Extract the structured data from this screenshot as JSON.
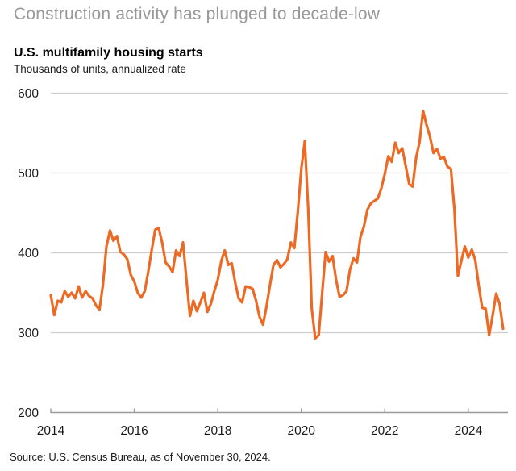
{
  "header": {
    "title": "Construction activity has plunged to decade-low"
  },
  "footer": {
    "source": "Source: U.S. Census Bureau, as of November 30, 2024."
  },
  "colors": {
    "line": "#ed6a24",
    "gridline": "#cdcdcd",
    "axis": "#9b9b9b",
    "title_gray": "#97989a"
  },
  "chart_data": {
    "type": "line",
    "title": "U.S. multifamily housing starts",
    "subtitle": "Thousands of units, annualized rate",
    "series_name": "Multifamily housing starts (thousands of units, annualized)",
    "frequency": "monthly",
    "x_start": {
      "year": 2014,
      "month": 1
    },
    "x_end": {
      "year": 2024,
      "month": 11
    },
    "ylim": [
      200,
      600
    ],
    "y_ticks": [
      200,
      300,
      400,
      500,
      600
    ],
    "x_ticks": [
      2014,
      2016,
      2018,
      2020,
      2022,
      2024
    ],
    "grid": "horizontal-only",
    "legend": "none",
    "values": [
      347,
      322,
      340,
      338,
      352,
      345,
      350,
      343,
      358,
      344,
      352,
      346,
      343,
      334,
      329,
      360,
      408,
      428,
      415,
      421,
      401,
      398,
      392,
      372,
      364,
      350,
      344,
      352,
      376,
      403,
      429,
      431,
      413,
      388,
      383,
      376,
      403,
      396,
      413,
      366,
      321,
      340,
      327,
      338,
      350,
      326,
      336,
      352,
      366,
      390,
      403,
      385,
      387,
      363,
      343,
      338,
      358,
      357,
      355,
      340,
      320,
      310,
      333,
      360,
      385,
      391,
      382,
      386,
      392,
      413,
      406,
      452,
      505,
      540,
      455,
      330,
      293,
      297,
      350,
      401,
      389,
      396,
      366,
      345,
      347,
      352,
      379,
      393,
      388,
      420,
      433,
      454,
      462,
      465,
      468,
      481,
      499,
      521,
      514,
      538,
      525,
      531,
      509,
      486,
      483,
      519,
      539,
      578,
      560,
      545,
      525,
      530,
      518,
      520,
      508,
      505,
      455,
      371,
      390,
      408,
      394,
      404,
      391,
      359,
      331,
      330,
      297,
      322,
      349,
      336,
      305
    ]
  }
}
